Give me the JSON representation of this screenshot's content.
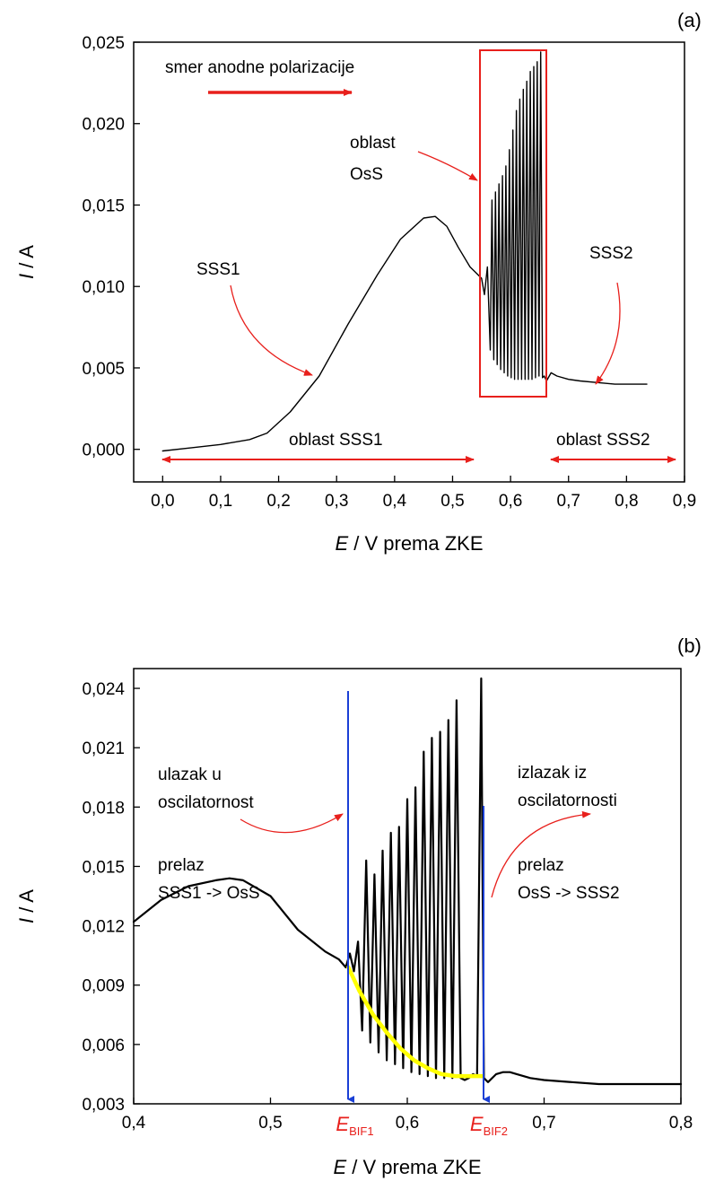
{
  "chart_data": [
    {
      "type": "line",
      "panel_label": "(a)",
      "xlabel_italic": "E",
      "xlabel_rest": " / V prema ZKE",
      "ylabel_italic": "I",
      "ylabel_rest": " / A",
      "xlim": [
        -0.05,
        0.9
      ],
      "ylim": [
        -0.002,
        0.025
      ],
      "xticks": [
        0.0,
        0.1,
        0.2,
        0.3,
        0.4,
        0.5,
        0.6,
        0.7,
        0.8,
        0.9
      ],
      "xtick_labels": [
        "0,0",
        "0,1",
        "0,2",
        "0,3",
        "0,4",
        "0,5",
        "0,6",
        "0,7",
        "0,8",
        "0,9"
      ],
      "yticks": [
        0.0,
        0.005,
        0.01,
        0.015,
        0.02,
        0.025
      ],
      "ytick_labels": [
        "0,000",
        "0,005",
        "0,010",
        "0,015",
        "0,020",
        "0,025"
      ],
      "series": [
        {
          "color": "#000000",
          "x": [
            0.0,
            0.05,
            0.1,
            0.15,
            0.18,
            0.22,
            0.27,
            0.32,
            0.37,
            0.41,
            0.45,
            0.47,
            0.49,
            0.51,
            0.53,
            0.55,
            0.555,
            0.56,
            0.565,
            0.568,
            0.571,
            0.574,
            0.577,
            0.58,
            0.583,
            0.586,
            0.589,
            0.592,
            0.595,
            0.598,
            0.601,
            0.604,
            0.607,
            0.61,
            0.613,
            0.616,
            0.619,
            0.622,
            0.625,
            0.628,
            0.631,
            0.634,
            0.637,
            0.64,
            0.643,
            0.646,
            0.649,
            0.652,
            0.655,
            0.658,
            0.662,
            0.67,
            0.68,
            0.7,
            0.72,
            0.75,
            0.78,
            0.8,
            0.82,
            0.835
          ],
          "y": [
            -0.0001,
            0.0001,
            0.0003,
            0.0006,
            0.001,
            0.0023,
            0.0045,
            0.0077,
            0.0107,
            0.0129,
            0.0142,
            0.0143,
            0.0137,
            0.0124,
            0.0112,
            0.0105,
            0.0095,
            0.0112,
            0.0061,
            0.0153,
            0.0055,
            0.0158,
            0.0052,
            0.0163,
            0.0049,
            0.0168,
            0.0047,
            0.0174,
            0.0045,
            0.0184,
            0.0044,
            0.0196,
            0.0043,
            0.0208,
            0.0043,
            0.0215,
            0.0043,
            0.0221,
            0.0043,
            0.0226,
            0.0043,
            0.0232,
            0.0043,
            0.0235,
            0.0044,
            0.0238,
            0.0045,
            0.0244,
            0.0044,
            0.0045,
            0.0042,
            0.0047,
            0.0045,
            0.0043,
            0.0042,
            0.0041,
            0.004,
            0.004,
            0.004,
            0.004
          ]
        }
      ],
      "annotations": {
        "direction": "smer anodne polarizacije",
        "osc_line1": "oblast",
        "osc_line2": "OsS",
        "sss1": "SSS1",
        "sss2": "SSS2",
        "region1": "oblast SSS1",
        "region2": "oblast SSS2"
      }
    },
    {
      "type": "line",
      "panel_label": "(b)",
      "xlabel_italic": "E",
      "xlabel_rest": " / V prema ZKE",
      "ylabel_italic": "I",
      "ylabel_rest": " / A",
      "xlim": [
        0.4,
        0.8
      ],
      "ylim": [
        0.003,
        0.025
      ],
      "xticks": [
        0.4,
        0.5,
        0.6,
        0.7,
        0.8
      ],
      "xtick_labels": [
        "0,4",
        "0,5",
        "0,6",
        "0,7",
        "0,8"
      ],
      "yticks": [
        0.003,
        0.006,
        0.009,
        0.012,
        0.015,
        0.018,
        0.021,
        0.024
      ],
      "ytick_labels": [
        "0,003",
        "0,006",
        "0,009",
        "0,012",
        "0,015",
        "0,018",
        "0,021",
        "0,024"
      ],
      "special_xticks": [
        {
          "x": 0.557,
          "main": "E",
          "sub": "BIF1"
        },
        {
          "x": 0.655,
          "main": "E",
          "sub": "BIF2"
        }
      ],
      "series": [
        {
          "color": "#000000",
          "x": [
            0.4,
            0.42,
            0.44,
            0.46,
            0.47,
            0.48,
            0.5,
            0.52,
            0.54,
            0.55,
            0.555,
            0.558,
            0.561,
            0.564,
            0.567,
            0.57,
            0.573,
            0.576,
            0.579,
            0.582,
            0.585,
            0.588,
            0.591,
            0.594,
            0.597,
            0.6,
            0.603,
            0.606,
            0.609,
            0.612,
            0.615,
            0.618,
            0.621,
            0.624,
            0.627,
            0.63,
            0.633,
            0.636,
            0.639,
            0.642,
            0.645,
            0.648,
            0.651,
            0.654,
            0.656,
            0.659,
            0.665,
            0.67,
            0.675,
            0.68,
            0.69,
            0.7,
            0.72,
            0.74,
            0.76,
            0.78,
            0.8
          ],
          "y": [
            0.0122,
            0.0133,
            0.014,
            0.0143,
            0.0144,
            0.0143,
            0.0135,
            0.0118,
            0.0107,
            0.0103,
            0.0099,
            0.0106,
            0.0097,
            0.0112,
            0.0067,
            0.0153,
            0.0061,
            0.0146,
            0.0056,
            0.0158,
            0.0052,
            0.0167,
            0.005,
            0.017,
            0.0048,
            0.0184,
            0.0046,
            0.019,
            0.0045,
            0.0208,
            0.0044,
            0.0215,
            0.0043,
            0.0218,
            0.0043,
            0.0224,
            0.0043,
            0.0234,
            0.0043,
            0.0042,
            0.0043,
            0.0045,
            0.0044,
            0.0245,
            0.0043,
            0.0041,
            0.0045,
            0.0046,
            0.0046,
            0.0045,
            0.0043,
            0.0042,
            0.0041,
            0.004,
            0.004,
            0.004,
            0.004
          ]
        },
        {
          "color": "#ffff00",
          "x": [
            0.557,
            0.565,
            0.575,
            0.585,
            0.595,
            0.605,
            0.615,
            0.625,
            0.635,
            0.645,
            0.655
          ],
          "y": [
            0.0099,
            0.0087,
            0.0075,
            0.0066,
            0.0058,
            0.0052,
            0.0048,
            0.0045,
            0.0044,
            0.0044,
            0.0044
          ]
        }
      ],
      "annotations": {
        "enter_line1": "ulazak u",
        "enter_line2": "oscilatornost",
        "trans1_line1": "prelaz",
        "trans1_line2": "SSS1 -> OsS",
        "exit_line1": "izlazak iz",
        "exit_line2": "oscilatornosti",
        "trans2_line1": "prelaz",
        "trans2_line2": "OsS -> SSS2"
      }
    }
  ]
}
